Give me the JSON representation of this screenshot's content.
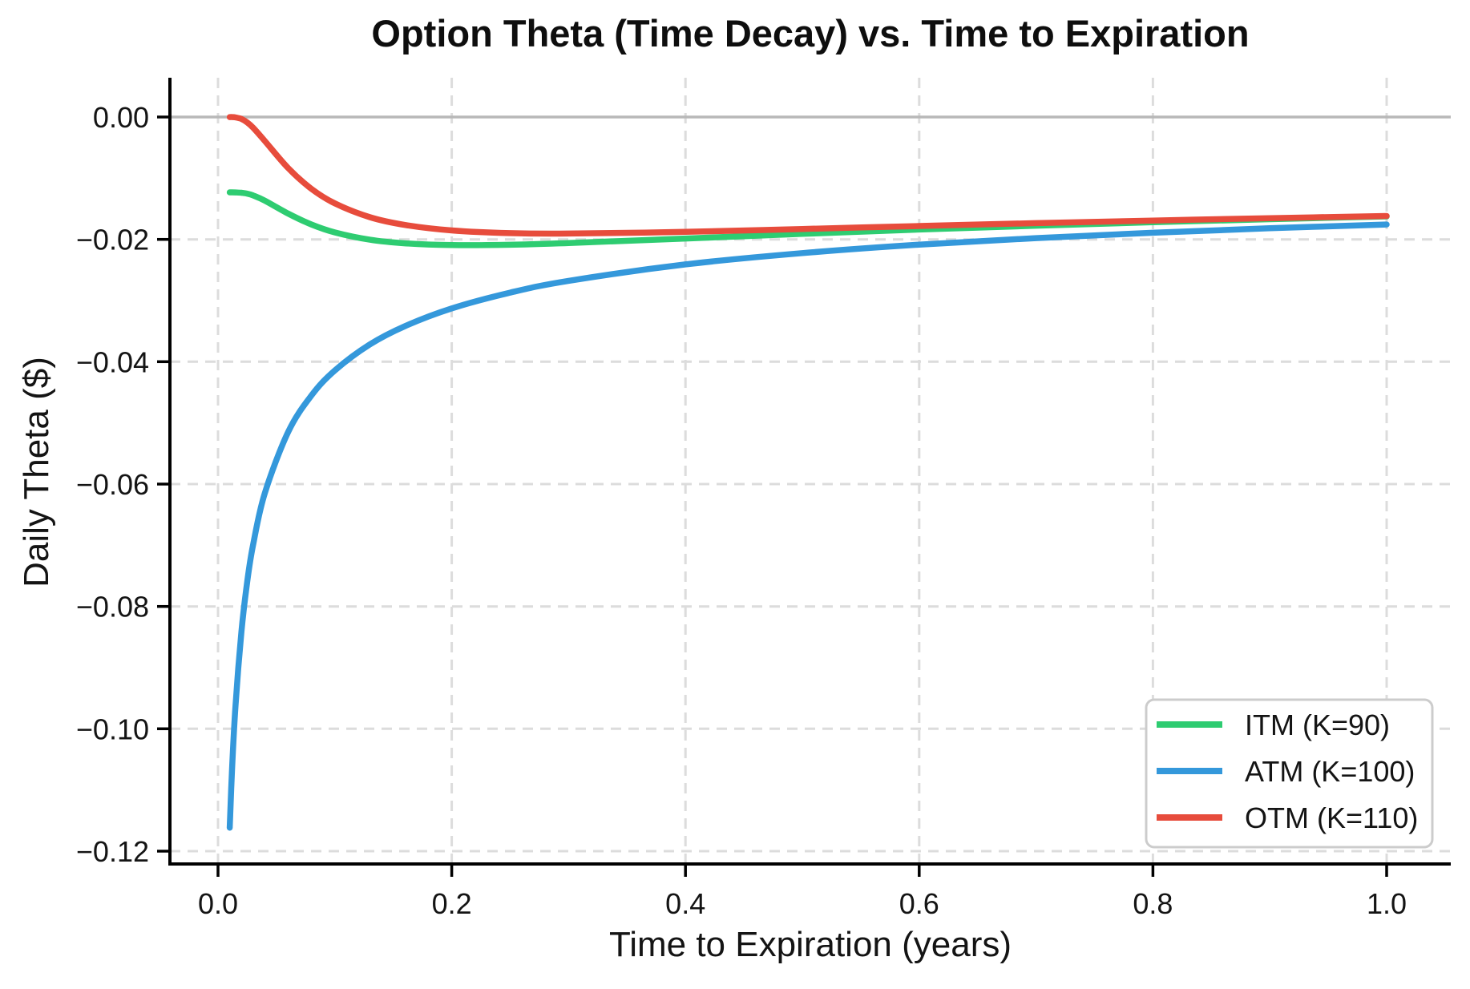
{
  "figure": {
    "background": "#ffffff"
  },
  "chart_data": {
    "type": "line",
    "title": "Option Theta (Time Decay) vs. Time to Expiration",
    "xlabel": "Time to Expiration (years)",
    "ylabel": "Daily Theta ($)",
    "xlim": [
      -0.04,
      1.05
    ],
    "ylim": [
      -0.1223,
      0.0058
    ],
    "grid": "dashed",
    "zero_reference_line": true,
    "legend_position": "lower right",
    "x_ticks": {
      "values": [
        0.0,
        0.2,
        0.4,
        0.6,
        0.8,
        1.0
      ],
      "labels": [
        "0.0",
        "0.2",
        "0.4",
        "0.6",
        "0.8",
        "1.0"
      ]
    },
    "y_ticks": {
      "values": [
        0.0,
        -0.02,
        -0.04,
        -0.06,
        -0.08,
        -0.1,
        -0.12
      ],
      "labels": [
        "0.00",
        "−0.02",
        "−0.04",
        "−0.06",
        "−0.08",
        "−0.10",
        "−0.12"
      ]
    },
    "x": [
      0.01,
      0.012,
      0.015,
      0.02,
      0.025,
      0.03,
      0.04,
      0.06,
      0.08,
      0.1,
      0.13,
      0.16,
      0.2,
      0.25,
      0.3,
      0.4,
      0.5,
      0.6,
      0.7,
      0.8,
      0.9,
      1.0
    ],
    "series": [
      {
        "name": "ITM (K=90)",
        "color": "#2ecc71",
        "values": [
          -0.01232,
          -0.01232,
          -0.01233,
          -0.01238,
          -0.01253,
          -0.01281,
          -0.01367,
          -0.01578,
          -0.01757,
          -0.01887,
          -0.02006,
          -0.02065,
          -0.02094,
          -0.02088,
          -0.0206,
          -0.01986,
          -0.0191,
          -0.01839,
          -0.01776,
          -0.0172,
          -0.0167,
          -0.01625
        ]
      },
      {
        "name": "ATM (K=100)",
        "color": "#3498db",
        "values": [
          -0.11616,
          -0.10664,
          -0.09611,
          -0.08415,
          -0.07599,
          -0.06997,
          -0.06152,
          -0.05149,
          -0.04551,
          -0.04142,
          -0.03717,
          -0.03418,
          -0.03129,
          -0.0287,
          -0.02678,
          -0.02409,
          -0.02224,
          -0.02086,
          -0.01979,
          -0.01892,
          -0.01819,
          -0.01757
        ]
      },
      {
        "name": "OTM (K=110)",
        "color": "#e74c3c",
        "values": [
          -1e-05,
          -1e-05,
          -6e-05,
          -0.00032,
          -0.00089,
          -0.00174,
          -0.0039,
          -0.00834,
          -0.01175,
          -0.01412,
          -0.01637,
          -0.01765,
          -0.01854,
          -0.01898,
          -0.01905,
          -0.01877,
          -0.0183,
          -0.01782,
          -0.01735,
          -0.01693,
          -0.01653,
          -0.01618
        ]
      }
    ]
  },
  "style_colors": {
    "gridline": "#dcdcdc",
    "zero_line": "#b8b8b8",
    "spine": "#000000",
    "tick_text": "#141414",
    "legend_border": "#cccccc",
    "legend_bg": "#ffffff",
    "legend_text": "#141414"
  }
}
